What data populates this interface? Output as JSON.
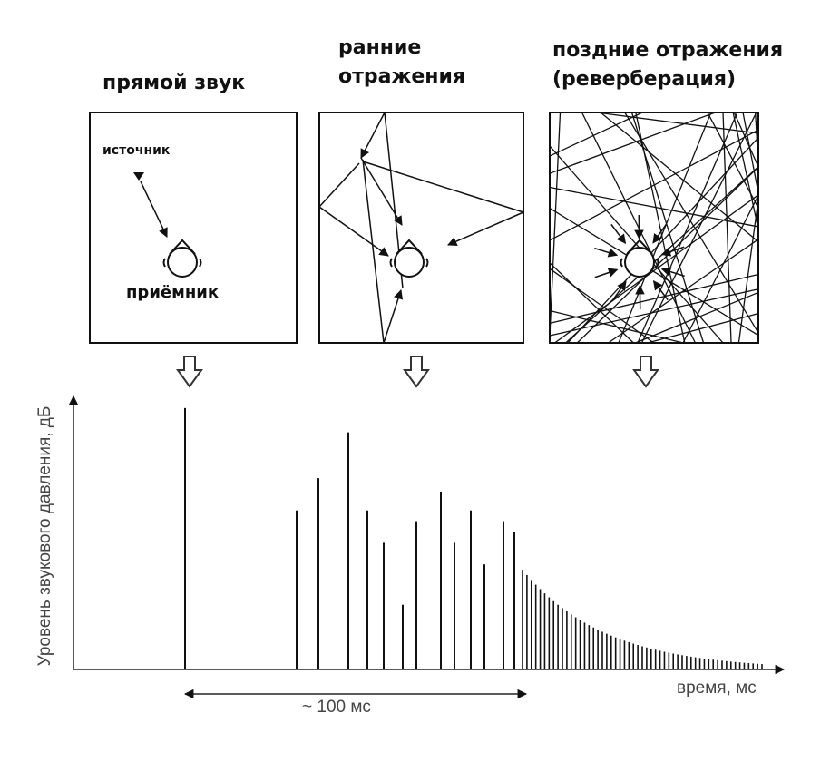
{
  "panels": {
    "direct": {
      "title": "прямой звук",
      "source_label": "источник",
      "receiver_label": "приёмник"
    },
    "early": {
      "title": "ранние\nотражения"
    },
    "late": {
      "title": "поздние отражения\n(реверберация)"
    }
  },
  "axes": {
    "y_label": "Уровень звукового давления, дБ",
    "x_label": "время, мс",
    "interval_label": "~ 100 мс"
  },
  "chart_data": {
    "type": "bar",
    "title": "",
    "xlabel": "время, мс",
    "ylabel": "Уровень звукового давления, дБ",
    "direct": {
      "t": 0,
      "level": 0.97
    },
    "early_reflections": [
      {
        "t": 41,
        "level": 0.59
      },
      {
        "t": 49,
        "level": 0.71
      },
      {
        "t": 60,
        "level": 0.88
      },
      {
        "t": 67,
        "level": 0.59
      },
      {
        "t": 73,
        "level": 0.47
      },
      {
        "t": 80,
        "level": 0.24
      },
      {
        "t": 85,
        "level": 0.55
      },
      {
        "t": 94,
        "level": 0.66
      },
      {
        "t": 99,
        "level": 0.47
      },
      {
        "t": 105,
        "level": 0.59
      },
      {
        "t": 110,
        "level": 0.39
      },
      {
        "t": 117,
        "level": 0.55
      },
      {
        "t": 121,
        "level": 0.51
      }
    ],
    "reverb_tail": {
      "t_start": 124,
      "t_end": 212,
      "level_start": 0.37,
      "level_end": 0.02,
      "count": 55
    },
    "interval_ms": 100
  }
}
